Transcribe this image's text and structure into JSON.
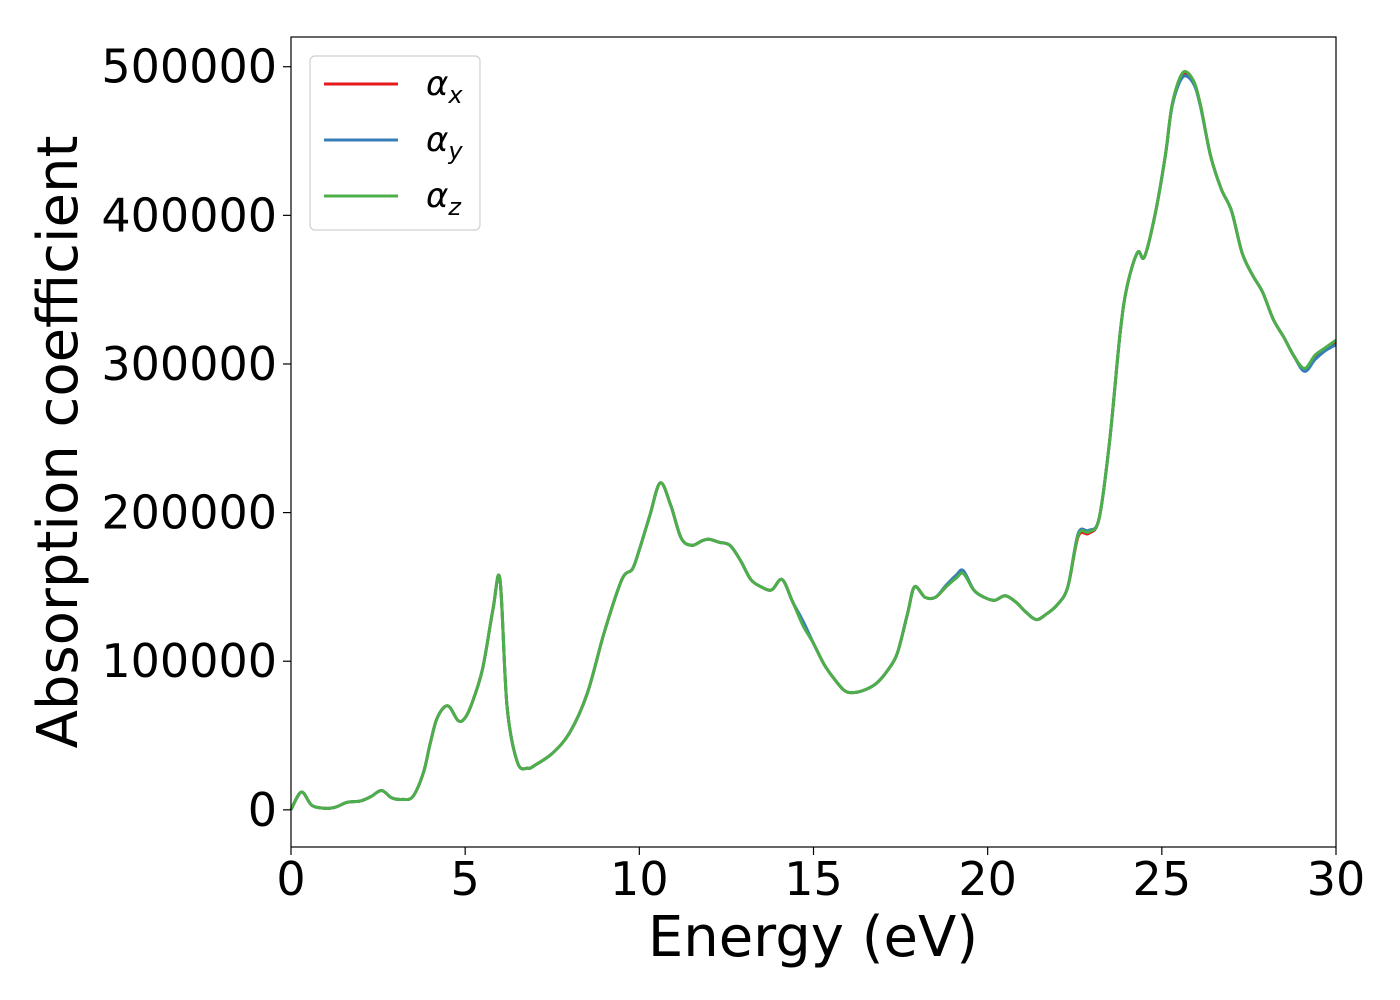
{
  "chart_data": {
    "type": "line",
    "title": "",
    "xlabel": "Energy (eV)",
    "ylabel": "Absorption coefficient",
    "xlim": [
      0,
      30
    ],
    "ylim": [
      -25000,
      520000
    ],
    "xticks": [
      0,
      5,
      10,
      15,
      20,
      25,
      30
    ],
    "xtick_labels": [
      "0",
      "5",
      "10",
      "15",
      "20",
      "25",
      "30"
    ],
    "yticks": [
      0,
      100000,
      200000,
      300000,
      400000,
      500000
    ],
    "ytick_labels": [
      "0",
      "100000",
      "200000",
      "300000",
      "400000",
      "500000"
    ],
    "grid": false,
    "legend_position": "top-left",
    "x": [
      0,
      0.3,
      0.6,
      1.0,
      1.3,
      1.6,
      2.0,
      2.3,
      2.6,
      2.9,
      3.2,
      3.5,
      3.8,
      4.0,
      4.2,
      4.5,
      4.8,
      5.0,
      5.2,
      5.5,
      5.8,
      6.0,
      6.2,
      6.5,
      6.8,
      7.0,
      7.5,
      8.0,
      8.5,
      9.0,
      9.5,
      9.8,
      10.0,
      10.3,
      10.6,
      10.9,
      11.2,
      11.5,
      11.8,
      12.0,
      12.3,
      12.6,
      12.9,
      13.2,
      13.5,
      13.8,
      14.1,
      14.4,
      14.7,
      15.0,
      15.3,
      15.6,
      15.9,
      16.2,
      16.5,
      16.8,
      17.1,
      17.4,
      17.7,
      17.9,
      18.2,
      18.5,
      18.8,
      19.1,
      19.3,
      19.6,
      19.9,
      20.2,
      20.5,
      20.8,
      21.1,
      21.4,
      21.7,
      22.0,
      22.3,
      22.6,
      22.9,
      23.2,
      23.5,
      23.8,
      24.0,
      24.3,
      24.5,
      24.8,
      25.1,
      25.3,
      25.6,
      25.9,
      26.1,
      26.4,
      26.7,
      27.0,
      27.3,
      27.6,
      27.9,
      28.2,
      28.5,
      28.8,
      29.1,
      29.4,
      29.7,
      30.0
    ],
    "series": [
      {
        "name": "α_x",
        "label_base": "α",
        "label_sub": "x",
        "color": "#e41a1c",
        "values": [
          0,
          12000,
          3000,
          1000,
          2000,
          5000,
          6000,
          9000,
          13000,
          8000,
          7000,
          9000,
          25000,
          45000,
          62000,
          70000,
          60000,
          62000,
          72000,
          95000,
          135000,
          155000,
          70000,
          32000,
          28000,
          30000,
          38000,
          52000,
          78000,
          120000,
          155000,
          162000,
          175000,
          198000,
          220000,
          205000,
          183000,
          178000,
          181000,
          182000,
          180000,
          178000,
          168000,
          155000,
          150000,
          148000,
          155000,
          140000,
          125000,
          112000,
          98000,
          88000,
          80000,
          79000,
          81000,
          85000,
          93000,
          105000,
          132000,
          150000,
          143000,
          143000,
          150000,
          157000,
          160000,
          148000,
          143000,
          141000,
          144000,
          140000,
          133000,
          128000,
          132000,
          138000,
          150000,
          184000,
          186000,
          196000,
          248000,
          320000,
          352000,
          375000,
          372000,
          400000,
          440000,
          475000,
          495000,
          490000,
          475000,
          440000,
          418000,
          403000,
          375000,
          360000,
          348000,
          330000,
          318000,
          305000,
          296000,
          305000,
          310000,
          315000
        ]
      },
      {
        "name": "α_y",
        "label_base": "α",
        "label_sub": "y",
        "color": "#377eb8",
        "values": [
          0,
          12000,
          3000,
          1000,
          2000,
          5000,
          6000,
          9000,
          13000,
          8000,
          7000,
          9000,
          25000,
          45000,
          62000,
          70000,
          60000,
          62000,
          72000,
          95000,
          135000,
          155000,
          70000,
          32000,
          28000,
          30000,
          38000,
          52000,
          78000,
          120000,
          155000,
          162000,
          175000,
          198000,
          220000,
          205000,
          183000,
          178000,
          181000,
          182000,
          180000,
          178000,
          168000,
          155000,
          150000,
          148000,
          155000,
          140000,
          127000,
          112000,
          98000,
          88000,
          80000,
          79000,
          81000,
          85000,
          93000,
          105000,
          132000,
          150000,
          143000,
          143000,
          151000,
          158000,
          161000,
          148000,
          143000,
          141000,
          144000,
          140000,
          133000,
          128000,
          132000,
          138000,
          150000,
          186000,
          188000,
          196000,
          248000,
          320000,
          352000,
          375000,
          372000,
          400000,
          440000,
          474000,
          493000,
          489000,
          474000,
          440000,
          418000,
          403000,
          375000,
          360000,
          348000,
          330000,
          318000,
          305000,
          295000,
          303000,
          309000,
          313000
        ]
      },
      {
        "name": "α_z",
        "label_base": "α",
        "label_sub": "z",
        "color": "#4daf4a",
        "values": [
          0,
          12000,
          3000,
          1000,
          2000,
          5000,
          6000,
          9000,
          13000,
          8000,
          7000,
          9000,
          25000,
          45000,
          62000,
          70000,
          60000,
          62000,
          72000,
          95000,
          135000,
          155000,
          70000,
          32000,
          28000,
          30000,
          38000,
          52000,
          78000,
          120000,
          155000,
          162000,
          175000,
          198000,
          220000,
          205000,
          183000,
          178000,
          181000,
          182000,
          180000,
          178000,
          168000,
          155000,
          150000,
          148000,
          155000,
          140000,
          124000,
          112000,
          98000,
          88000,
          80000,
          79000,
          81000,
          85000,
          93000,
          105000,
          132000,
          150000,
          143000,
          143000,
          150000,
          156000,
          159000,
          148000,
          143000,
          141000,
          144000,
          140000,
          133000,
          128000,
          132000,
          138000,
          150000,
          185000,
          187000,
          196000,
          248000,
          320000,
          352000,
          375000,
          372000,
          400000,
          440000,
          475000,
          496000,
          491000,
          475000,
          440000,
          418000,
          403000,
          375000,
          360000,
          348000,
          330000,
          318000,
          305000,
          297000,
          306000,
          311000,
          316000
        ]
      }
    ]
  }
}
